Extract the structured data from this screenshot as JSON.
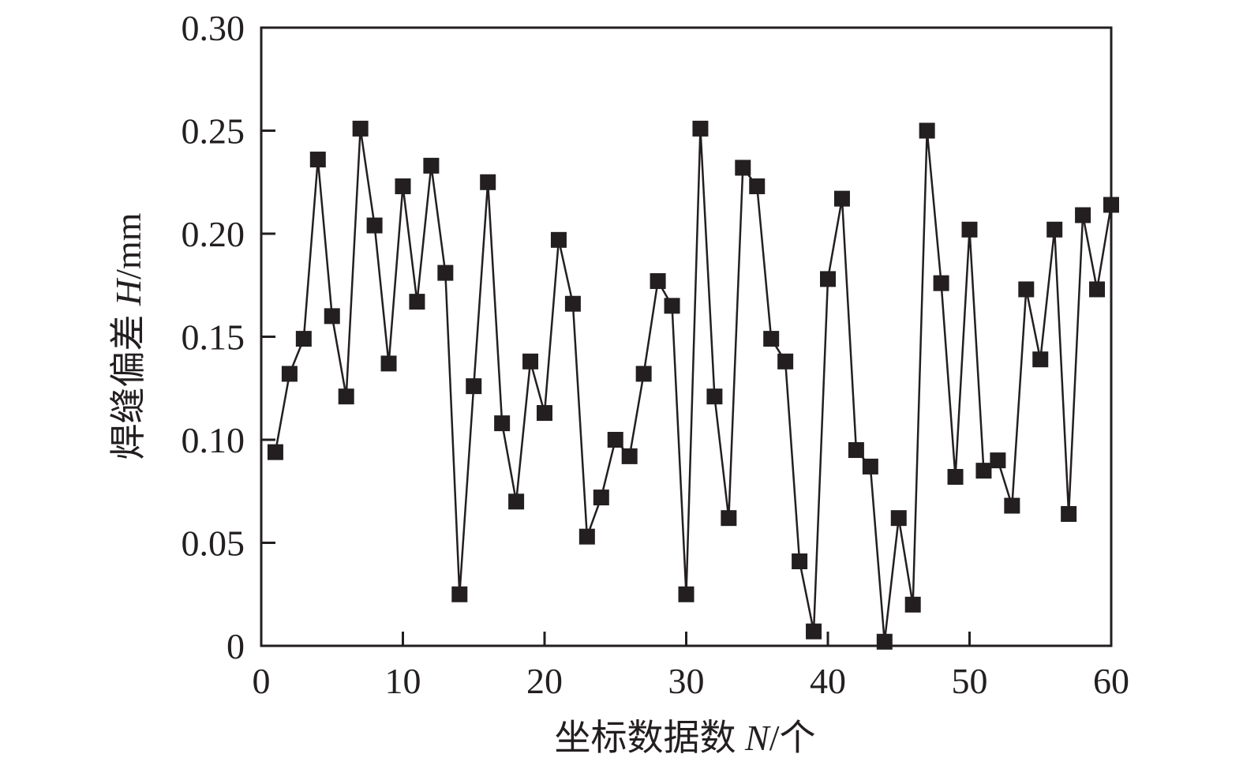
{
  "chart_data": {
    "type": "line",
    "title": "",
    "xlabel": "坐标数据数 N/个",
    "xlabel_parts": {
      "prefix": "坐标数据数 ",
      "italic": "N",
      "suffix": "/个"
    },
    "ylabel": "焊缝偏差 H/mm",
    "ylabel_parts": {
      "prefix": "焊缝偏差 ",
      "italic": "H",
      "suffix": "/mm"
    },
    "xlim": [
      0,
      60
    ],
    "ylim": [
      0,
      0.3
    ],
    "xticks": [
      "0",
      "10",
      "20",
      "30",
      "40",
      "50",
      "60"
    ],
    "yticks": [
      "0",
      "0.05",
      "0.10",
      "0.15",
      "0.20",
      "0.25",
      "0.30"
    ],
    "grid": false,
    "marker": "square",
    "color": "#231f20",
    "x": [
      1,
      2,
      3,
      4,
      5,
      6,
      7,
      8,
      9,
      10,
      11,
      12,
      13,
      14,
      15,
      16,
      17,
      18,
      19,
      20,
      21,
      22,
      23,
      24,
      25,
      26,
      27,
      28,
      29,
      30,
      31,
      32,
      33,
      34,
      35,
      36,
      37,
      38,
      39,
      40,
      41,
      42,
      43,
      44,
      45,
      46,
      47,
      48,
      49,
      50,
      51,
      52,
      53,
      54,
      55,
      56,
      57,
      58,
      59,
      60
    ],
    "values": [
      0.094,
      0.132,
      0.149,
      0.236,
      0.16,
      0.121,
      0.251,
      0.204,
      0.137,
      0.223,
      0.167,
      0.233,
      0.181,
      0.025,
      0.126,
      0.225,
      0.108,
      0.07,
      0.138,
      0.113,
      0.197,
      0.166,
      0.053,
      0.072,
      0.1,
      0.092,
      0.132,
      0.177,
      0.165,
      0.025,
      0.251,
      0.121,
      0.062,
      0.232,
      0.223,
      0.149,
      0.138,
      0.041,
      0.007,
      0.178,
      0.217,
      0.095,
      0.087,
      0.002,
      0.062,
      0.02,
      0.25,
      0.176,
      0.082,
      0.202,
      0.085,
      0.09,
      0.068,
      0.173,
      0.139,
      0.202,
      0.064,
      0.209,
      0.173,
      0.214
    ]
  }
}
